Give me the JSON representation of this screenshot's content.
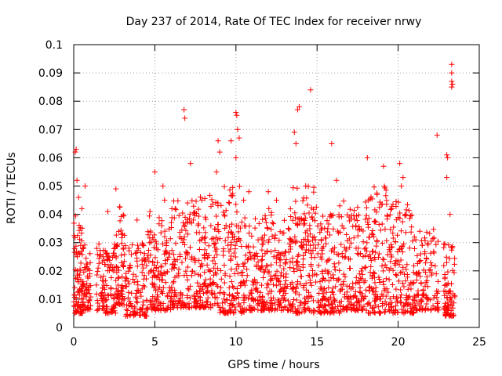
{
  "chart_data": {
    "type": "scatter",
    "title": "Day 237 of 2014, Rate Of TEC Index for receiver nrwy",
    "xlabel": "GPS time / hours",
    "ylabel": "ROTI / TECUs",
    "xlim": [
      0,
      25
    ],
    "ylim": [
      0,
      0.1
    ],
    "x_ticks": [
      0,
      5,
      10,
      15,
      20,
      25
    ],
    "x_tick_labels": [
      "0",
      "5",
      "10",
      "15",
      "20",
      "25"
    ],
    "y_ticks": [
      0,
      0.01,
      0.02,
      0.03,
      0.04,
      0.05,
      0.06,
      0.07,
      0.08,
      0.09,
      0.1
    ],
    "y_tick_labels": [
      "0",
      "0.01",
      "0.02",
      "0.03",
      "0.04",
      "0.05",
      "0.06",
      "0.07",
      "0.08",
      "0.09",
      "0.1"
    ],
    "grid": true,
    "marker": "+",
    "colors": {
      "series": "#ff0000"
    },
    "series": [
      {
        "name": "ROTI",
        "points": [
          [
            0.1,
            0.062
          ],
          [
            0.15,
            0.063
          ],
          [
            0.2,
            0.052
          ],
          [
            0.3,
            0.046
          ],
          [
            0.5,
            0.042
          ],
          [
            0.7,
            0.05
          ],
          [
            6.8,
            0.077
          ],
          [
            6.85,
            0.074
          ],
          [
            7.2,
            0.058
          ],
          [
            8.9,
            0.066
          ],
          [
            9.0,
            0.062
          ],
          [
            9.7,
            0.066
          ],
          [
            10.0,
            0.076
          ],
          [
            10.05,
            0.075
          ],
          [
            10.1,
            0.07
          ],
          [
            10.2,
            0.067
          ],
          [
            10.0,
            0.06
          ],
          [
            13.8,
            0.077
          ],
          [
            13.9,
            0.078
          ],
          [
            13.6,
            0.069
          ],
          [
            13.7,
            0.065
          ],
          [
            14.6,
            0.084
          ],
          [
            15.9,
            0.065
          ],
          [
            16.2,
            0.052
          ],
          [
            18.1,
            0.06
          ],
          [
            19.1,
            0.057
          ],
          [
            20.1,
            0.058
          ],
          [
            20.3,
            0.053
          ],
          [
            22.4,
            0.068
          ],
          [
            23.0,
            0.061
          ],
          [
            23.05,
            0.06
          ],
          [
            23.0,
            0.053
          ],
          [
            23.3,
            0.093
          ],
          [
            23.3,
            0.09
          ],
          [
            23.3,
            0.087
          ],
          [
            23.35,
            0.086
          ],
          [
            23.3,
            0.085
          ],
          [
            23.2,
            0.04
          ],
          [
            20.2,
            0.05
          ],
          [
            18.7,
            0.047
          ],
          [
            14.3,
            0.05
          ],
          [
            12.0,
            0.048
          ],
          [
            10.8,
            0.048
          ],
          [
            8.8,
            0.055
          ],
          [
            7.9,
            0.045
          ],
          [
            5.6,
            0.045
          ],
          [
            4.7,
            0.041
          ],
          [
            3.9,
            0.038
          ],
          [
            2.6,
            0.049
          ],
          [
            2.1,
            0.041
          ],
          [
            1.4,
            0.015
          ],
          [
            5.0,
            0.055
          ],
          [
            5.5,
            0.05
          ],
          [
            12.5,
            0.045
          ],
          [
            16.4,
            0.043
          ]
        ],
        "bands": [
          {
            "x": [
              0.0,
              0.6
            ],
            "y": [
              0.005,
              0.04
            ],
            "n": 90
          },
          {
            "x": [
              0.6,
              1.1
            ],
            "y": [
              0.006,
              0.03
            ],
            "n": 50
          },
          {
            "x": [
              1.4,
              2.6
            ],
            "y": [
              0.005,
              0.03
            ],
            "n": 110
          },
          {
            "x": [
              2.6,
              3.2
            ],
            "y": [
              0.008,
              0.045
            ],
            "n": 70
          },
          {
            "x": [
              3.2,
              4.5
            ],
            "y": [
              0.004,
              0.03
            ],
            "n": 110
          },
          {
            "x": [
              4.5,
              6.0
            ],
            "y": [
              0.006,
              0.04
            ],
            "n": 140
          },
          {
            "x": [
              6.0,
              7.5
            ],
            "y": [
              0.007,
              0.045
            ],
            "n": 140
          },
          {
            "x": [
              7.5,
              9.0
            ],
            "y": [
              0.007,
              0.05
            ],
            "n": 150
          },
          {
            "x": [
              9.0,
              10.5
            ],
            "y": [
              0.005,
              0.05
            ],
            "n": 150
          },
          {
            "x": [
              10.5,
              12.0
            ],
            "y": [
              0.006,
              0.04
            ],
            "n": 140
          },
          {
            "x": [
              12.0,
              13.5
            ],
            "y": [
              0.006,
              0.042
            ],
            "n": 140
          },
          {
            "x": [
              13.5,
              15.0
            ],
            "y": [
              0.005,
              0.05
            ],
            "n": 160
          },
          {
            "x": [
              15.0,
              16.5
            ],
            "y": [
              0.005,
              0.04
            ],
            "n": 150
          },
          {
            "x": [
              16.5,
              18.0
            ],
            "y": [
              0.006,
              0.045
            ],
            "n": 140
          },
          {
            "x": [
              18.0,
              19.5
            ],
            "y": [
              0.005,
              0.05
            ],
            "n": 150
          },
          {
            "x": [
              19.5,
              21.0
            ],
            "y": [
              0.005,
              0.045
            ],
            "n": 140
          },
          {
            "x": [
              21.0,
              22.5
            ],
            "y": [
              0.006,
              0.035
            ],
            "n": 120
          },
          {
            "x": [
              22.8,
              23.5
            ],
            "y": [
              0.004,
              0.03
            ],
            "n": 80
          }
        ]
      }
    ]
  }
}
